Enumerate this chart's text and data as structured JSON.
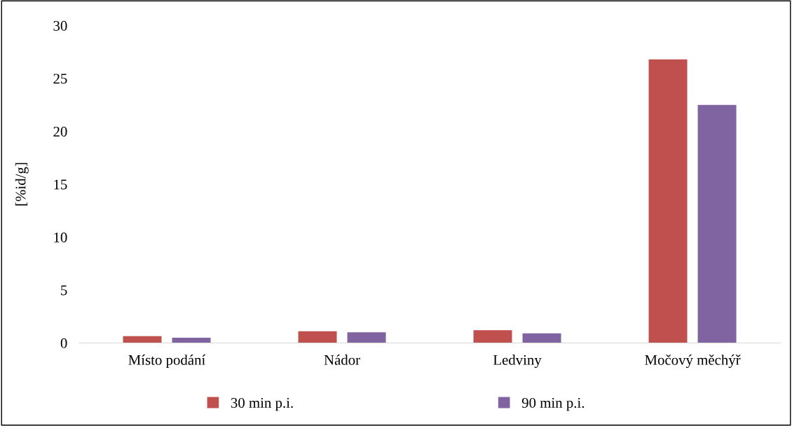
{
  "chart_data": {
    "type": "bar",
    "ylabel": "[%id/g]",
    "categories": [
      "Místo podání",
      "Nádor",
      "Ledviny",
      "Močový měchýř"
    ],
    "series": [
      {
        "name": "30 min p.i.",
        "color": "#c0504d",
        "values": [
          0.65,
          1.1,
          1.2,
          26.8
        ]
      },
      {
        "name": "90 min p.i.",
        "color": "#8064a2",
        "values": [
          0.5,
          1.0,
          0.9,
          22.5
        ]
      }
    ],
    "ylim": [
      0,
      30
    ],
    "yticks": [
      0,
      5,
      10,
      15,
      20,
      25,
      30
    ],
    "grid": false,
    "legend": "bottom"
  }
}
